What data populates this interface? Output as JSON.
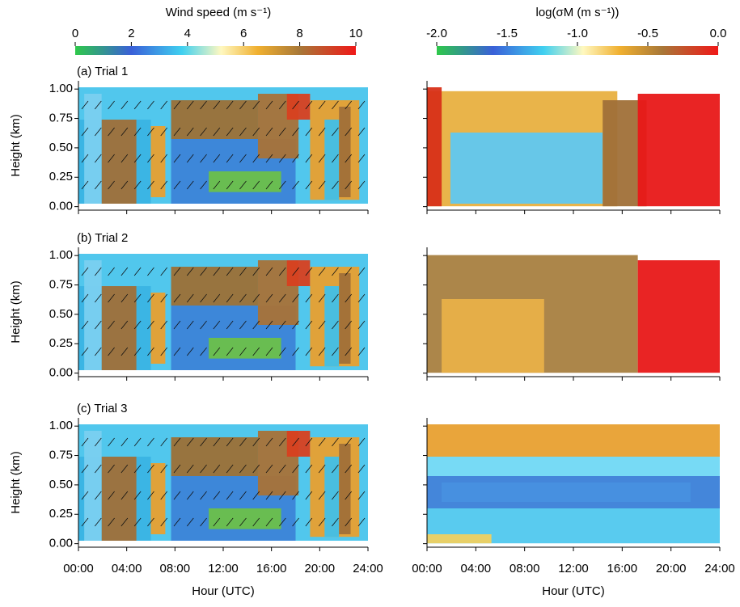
{
  "chart_data": {
    "type": "heatmap",
    "colorbars": [
      {
        "title": "Wind speed (m s⁻¹)",
        "lim": [
          0,
          10
        ],
        "ticks": [
          0,
          2,
          4,
          6,
          8,
          10
        ]
      },
      {
        "title": "log(σM (m s⁻¹))",
        "lim": [
          -2,
          0
        ],
        "ticks": [
          {
            "value": -2,
            "label": "-2.0"
          },
          {
            "value": -1.5,
            "label": "-1.5"
          },
          {
            "value": -1,
            "label": "-1.0"
          },
          {
            "value": -0.5,
            "label": "-0.5"
          },
          {
            "value": 0,
            "label": "0.0"
          }
        ]
      }
    ],
    "panels": [
      {
        "label": "(a) Trial 1"
      },
      {
        "label": "(b) Trial 2"
      },
      {
        "label": "(c) Trial 3"
      }
    ],
    "ylabel": "Height (km)",
    "ylim": [
      -0.03,
      1.07
    ],
    "yticks": [
      {
        "value": 0,
        "label": "0.00"
      },
      {
        "value": 0.25,
        "label": "0.25"
      },
      {
        "value": 0.5,
        "label": "0.50"
      },
      {
        "value": 0.75,
        "label": "0.75"
      },
      {
        "value": 1,
        "label": "1.00"
      }
    ],
    "xlabel": "Hour (UTC)",
    "xlim": [
      0,
      24
    ],
    "xticks": [
      {
        "value": 0,
        "label": "00:00"
      },
      {
        "value": 4,
        "label": "04:00"
      },
      {
        "value": 8,
        "label": "08:00"
      },
      {
        "value": 12,
        "label": "12:00"
      },
      {
        "value": 16,
        "label": "16:00"
      },
      {
        "value": 20,
        "label": "20:00"
      },
      {
        "value": 24,
        "label": "24:00"
      }
    ]
  }
}
